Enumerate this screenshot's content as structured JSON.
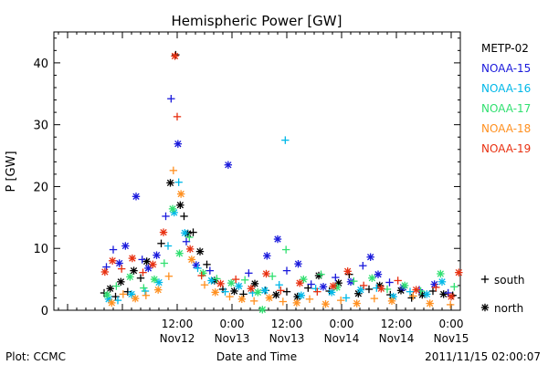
{
  "chart_data": {
    "type": "scatter",
    "title": "Hemispheric Power [GW]",
    "xlabel": "Date and Time",
    "ylabel": "P [GW]",
    "xlim": [
      "2011-11-11 09:00",
      "2011-11-15 02:00"
    ],
    "ylim": [
      0,
      45
    ],
    "y_ticks": [
      0,
      10,
      20,
      30,
      40
    ],
    "x_ticks": [
      {
        "at": "2011-11-11 12:00",
        "line1": "",
        "line2": ""
      },
      {
        "at": "2011-11-12 00:00",
        "line1": "",
        "line2": ""
      },
      {
        "at": "2011-11-12 12:00",
        "line1": "12:00",
        "line2": "Nov12"
      },
      {
        "at": "2011-11-13 00:00",
        "line1": "0:00",
        "line2": "Nov13"
      },
      {
        "at": "2011-11-13 12:00",
        "line1": "12:00",
        "line2": "Nov13"
      },
      {
        "at": "2011-11-14 00:00",
        "line1": "0:00",
        "line2": "Nov14"
      },
      {
        "at": "2011-11-14 12:00",
        "line1": "12:00",
        "line2": "Nov14"
      },
      {
        "at": "2011-11-15 00:00",
        "line1": "0:00",
        "line2": "Nov15"
      }
    ],
    "legend_placement": "right",
    "marker_legend": [
      {
        "marker": "+",
        "label": "south"
      },
      {
        "marker": "*",
        "label": "north"
      }
    ],
    "series": [
      {
        "name": "METP-02",
        "color": "#000000",
        "points": [
          [
            "2011-11-11 20:00",
            2.8,
            "+"
          ],
          [
            "2011-11-11 21:20",
            3.5,
            "*"
          ],
          [
            "2011-11-11 22:30",
            2.2,
            "+"
          ],
          [
            "2011-11-11 23:40",
            4.6,
            "*"
          ],
          [
            "2011-11-12 01:10",
            3.0,
            "+"
          ],
          [
            "2011-11-12 02:30",
            6.4,
            "*"
          ],
          [
            "2011-11-12 04:00",
            5.2,
            "+"
          ],
          [
            "2011-11-12 05:20",
            7.9,
            "*"
          ],
          [
            "2011-11-12 08:30",
            10.8,
            "+"
          ],
          [
            "2011-11-12 10:30",
            20.6,
            "*"
          ],
          [
            "2011-11-12 11:40",
            41.3,
            "+"
          ],
          [
            "2011-11-12 12:40",
            17.0,
            "*"
          ],
          [
            "2011-11-12 13:30",
            15.2,
            "+"
          ],
          [
            "2011-11-12 14:20",
            12.4,
            "*"
          ],
          [
            "2011-11-12 15:30",
            12.6,
            "+"
          ],
          [
            "2011-11-12 17:00",
            9.5,
            "*"
          ],
          [
            "2011-11-12 18:30",
            7.4,
            "+"
          ],
          [
            "2011-11-12 20:10",
            4.8,
            "*"
          ],
          [
            "2011-11-12 22:00",
            3.4,
            "+"
          ],
          [
            "2011-11-13 00:30",
            3.1,
            "*"
          ],
          [
            "2011-11-13 02:30",
            2.6,
            "+"
          ],
          [
            "2011-11-13 05:00",
            4.3,
            "*"
          ],
          [
            "2011-11-13 07:20",
            3.2,
            "+"
          ],
          [
            "2011-11-13 09:40",
            2.5,
            "*"
          ],
          [
            "2011-11-13 12:00",
            3.0,
            "+"
          ],
          [
            "2011-11-13 14:20",
            2.2,
            "*"
          ],
          [
            "2011-11-13 16:40",
            3.6,
            "+"
          ],
          [
            "2011-11-13 19:00",
            5.6,
            "*"
          ],
          [
            "2011-11-13 21:20",
            3.1,
            "+"
          ],
          [
            "2011-11-13 23:20",
            4.4,
            "*"
          ],
          [
            "2011-11-14 01:40",
            5.8,
            "+"
          ],
          [
            "2011-11-14 03:40",
            2.7,
            "*"
          ],
          [
            "2011-11-14 06:00",
            3.4,
            "+"
          ],
          [
            "2011-11-14 08:20",
            4.0,
            "*"
          ],
          [
            "2011-11-14 10:40",
            2.5,
            "+"
          ],
          [
            "2011-11-14 13:00",
            3.2,
            "*"
          ],
          [
            "2011-11-14 15:20",
            2.0,
            "+"
          ],
          [
            "2011-11-14 17:40",
            2.5,
            "*"
          ],
          [
            "2011-11-14 20:00",
            3.1,
            "+"
          ],
          [
            "2011-11-14 22:20",
            2.6,
            "*"
          ],
          [
            "2011-11-15 00:20",
            2.4,
            "+"
          ]
        ]
      },
      {
        "name": "NOAA-15",
        "color": "#1a1adc",
        "points": [
          [
            "2011-11-11 20:30",
            7.0,
            "+"
          ],
          [
            "2011-11-11 22:00",
            9.8,
            "+"
          ],
          [
            "2011-11-11 23:20",
            7.6,
            "*"
          ],
          [
            "2011-11-12 00:40",
            10.4,
            "*"
          ],
          [
            "2011-11-12 03:00",
            18.4,
            "*"
          ],
          [
            "2011-11-12 04:20",
            8.2,
            "+"
          ],
          [
            "2011-11-12 05:40",
            6.8,
            "*"
          ],
          [
            "2011-11-12 07:30",
            8.9,
            "*"
          ],
          [
            "2011-11-12 09:30",
            15.2,
            "+"
          ],
          [
            "2011-11-12 10:40",
            34.2,
            "+"
          ],
          [
            "2011-11-12 12:10",
            26.9,
            "*"
          ],
          [
            "2011-11-12 14:00",
            11.1,
            "+"
          ],
          [
            "2011-11-12 16:10",
            7.3,
            "*"
          ],
          [
            "2011-11-12 19:10",
            6.4,
            "+"
          ],
          [
            "2011-11-12 23:10",
            23.5,
            "*"
          ],
          [
            "2011-11-13 03:40",
            6.0,
            "+"
          ],
          [
            "2011-11-13 07:40",
            8.8,
            "*"
          ],
          [
            "2011-11-13 10:00",
            11.5,
            "*"
          ],
          [
            "2011-11-13 12:00",
            6.4,
            "+"
          ],
          [
            "2011-11-13 14:30",
            7.5,
            "*"
          ],
          [
            "2011-11-13 17:20",
            4.2,
            "+"
          ],
          [
            "2011-11-13 20:00",
            3.8,
            "*"
          ],
          [
            "2011-11-13 22:40",
            5.3,
            "+"
          ],
          [
            "2011-11-14 02:00",
            4.6,
            "*"
          ],
          [
            "2011-11-14 04:40",
            7.2,
            "+"
          ],
          [
            "2011-11-14 06:20",
            8.6,
            "*"
          ],
          [
            "2011-11-14 08:00",
            5.8,
            "*"
          ],
          [
            "2011-11-14 10:30",
            4.5,
            "+"
          ],
          [
            "2011-11-14 13:30",
            3.7,
            "*"
          ],
          [
            "2011-11-14 17:00",
            3.3,
            "+"
          ],
          [
            "2011-11-14 20:20",
            4.2,
            "*"
          ],
          [
            "2011-11-14 23:20",
            2.8,
            "+"
          ]
        ]
      },
      {
        "name": "NOAA-16",
        "color": "#00b8e8",
        "points": [
          [
            "2011-11-11 21:00",
            1.8,
            "*"
          ],
          [
            "2011-11-11 23:00",
            1.6,
            "+"
          ],
          [
            "2011-11-12 02:00",
            2.6,
            "*"
          ],
          [
            "2011-11-12 05:00",
            3.1,
            "+"
          ],
          [
            "2011-11-12 08:00",
            4.5,
            "*"
          ],
          [
            "2011-11-12 10:00",
            10.4,
            "+"
          ],
          [
            "2011-11-12 11:20",
            15.8,
            "*"
          ],
          [
            "2011-11-12 12:20",
            20.7,
            "+"
          ],
          [
            "2011-11-12 13:40",
            12.5,
            "*"
          ],
          [
            "2011-11-12 16:30",
            6.8,
            "+"
          ],
          [
            "2011-11-12 19:30",
            4.8,
            "*"
          ],
          [
            "2011-11-12 22:30",
            3.0,
            "+"
          ],
          [
            "2011-11-13 01:30",
            3.9,
            "*"
          ],
          [
            "2011-11-13 04:30",
            2.8,
            "+"
          ],
          [
            "2011-11-13 07:10",
            3.2,
            "*"
          ],
          [
            "2011-11-13 10:20",
            4.1,
            "+"
          ],
          [
            "2011-11-13 11:40",
            27.5,
            "+"
          ],
          [
            "2011-11-13 15:10",
            2.4,
            "*"
          ],
          [
            "2011-11-13 18:20",
            3.5,
            "+"
          ],
          [
            "2011-11-13 21:50",
            2.9,
            "*"
          ],
          [
            "2011-11-14 01:00",
            2.0,
            "+"
          ],
          [
            "2011-11-14 04:10",
            3.3,
            "*"
          ],
          [
            "2011-11-14 07:40",
            3.6,
            "+"
          ],
          [
            "2011-11-14 11:20",
            2.2,
            "*"
          ],
          [
            "2011-11-14 15:00",
            3.0,
            "+"
          ],
          [
            "2011-11-14 18:40",
            2.6,
            "*"
          ],
          [
            "2011-11-14 22:00",
            4.6,
            "*"
          ]
        ]
      },
      {
        "name": "NOAA-17",
        "color": "#30e070",
        "points": [
          [
            "2011-11-11 20:40",
            2.5,
            "*"
          ],
          [
            "2011-11-11 22:40",
            3.9,
            "+"
          ],
          [
            "2011-11-12 01:40",
            5.4,
            "*"
          ],
          [
            "2011-11-12 04:40",
            3.6,
            "+"
          ],
          [
            "2011-11-12 07:00",
            5.0,
            "*"
          ],
          [
            "2011-11-12 09:10",
            7.6,
            "+"
          ],
          [
            "2011-11-12 11:00",
            16.4,
            "*"
          ],
          [
            "2011-11-12 12:30",
            9.2,
            "*"
          ],
          [
            "2011-11-12 14:40",
            11.8,
            "+"
          ],
          [
            "2011-11-12 17:40",
            6.0,
            "*"
          ],
          [
            "2011-11-12 20:40",
            5.1,
            "+"
          ],
          [
            "2011-11-12 23:50",
            4.4,
            "*"
          ],
          [
            "2011-11-13 02:50",
            4.9,
            "+"
          ],
          [
            "2011-11-13 05:40",
            2.9,
            "*"
          ],
          [
            "2011-11-13 06:40",
            0.1,
            "*"
          ],
          [
            "2011-11-13 08:50",
            5.5,
            "+"
          ],
          [
            "2011-11-13 11:50",
            9.8,
            "+"
          ],
          [
            "2011-11-13 15:40",
            5.0,
            "*"
          ],
          [
            "2011-11-13 19:30",
            5.8,
            "+"
          ],
          [
            "2011-11-13 23:00",
            3.7,
            "*"
          ],
          [
            "2011-11-14 02:40",
            4.7,
            "+"
          ],
          [
            "2011-11-14 06:40",
            5.2,
            "*"
          ],
          [
            "2011-11-14 10:00",
            3.4,
            "+"
          ],
          [
            "2011-11-14 13:50",
            4.0,
            "*"
          ],
          [
            "2011-11-14 17:20",
            3.1,
            "+"
          ],
          [
            "2011-11-14 21:40",
            5.9,
            "*"
          ],
          [
            "2011-11-15 00:40",
            3.8,
            "+"
          ]
        ]
      },
      {
        "name": "NOAA-18",
        "color": "#ff9020",
        "points": [
          [
            "2011-11-11 21:40",
            1.2,
            "*"
          ],
          [
            "2011-11-12 00:10",
            2.6,
            "+"
          ],
          [
            "2011-11-12 02:50",
            1.9,
            "*"
          ],
          [
            "2011-11-12 05:10",
            2.4,
            "+"
          ],
          [
            "2011-11-12 07:50",
            3.3,
            "*"
          ],
          [
            "2011-11-12 10:10",
            5.5,
            "+"
          ],
          [
            "2011-11-12 11:10",
            22.6,
            "+"
          ],
          [
            "2011-11-12 12:50",
            18.8,
            "*"
          ],
          [
            "2011-11-12 15:10",
            8.2,
            "*"
          ],
          [
            "2011-11-12 18:00",
            4.1,
            "+"
          ],
          [
            "2011-11-12 20:20",
            2.9,
            "*"
          ],
          [
            "2011-11-12 23:30",
            2.2,
            "+"
          ],
          [
            "2011-11-13 02:10",
            1.8,
            "*"
          ],
          [
            "2011-11-13 04:50",
            1.5,
            "+"
          ],
          [
            "2011-11-13 08:10",
            2.0,
            "*"
          ],
          [
            "2011-11-13 11:10",
            1.4,
            "+"
          ],
          [
            "2011-11-13 14:10",
            1.2,
            "*"
          ],
          [
            "2011-11-13 17:00",
            1.8,
            "+"
          ],
          [
            "2011-11-13 20:30",
            1.0,
            "*"
          ],
          [
            "2011-11-13 23:50",
            1.6,
            "+"
          ],
          [
            "2011-11-14 03:20",
            1.1,
            "*"
          ],
          [
            "2011-11-14 07:10",
            1.9,
            "+"
          ],
          [
            "2011-11-14 11:00",
            1.5,
            "*"
          ],
          [
            "2011-11-14 15:40",
            2.3,
            "+"
          ],
          [
            "2011-11-14 19:20",
            1.1,
            "*"
          ],
          [
            "2011-11-14 23:50",
            0.9,
            "+"
          ]
        ]
      },
      {
        "name": "NOAA-19",
        "color": "#e83010",
        "points": [
          [
            "2011-11-11 20:10",
            6.2,
            "*"
          ],
          [
            "2011-11-11 21:50",
            8.0,
            "*"
          ],
          [
            "2011-11-11 23:50",
            6.7,
            "+"
          ],
          [
            "2011-11-12 02:10",
            8.4,
            "*"
          ],
          [
            "2011-11-12 04:30",
            6.1,
            "+"
          ],
          [
            "2011-11-12 06:40",
            7.4,
            "*"
          ],
          [
            "2011-11-12 09:00",
            12.6,
            "*"
          ],
          [
            "2011-11-12 11:30",
            41.1,
            "*"
          ],
          [
            "2011-11-12 12:00",
            31.3,
            "+"
          ],
          [
            "2011-11-12 14:50",
            9.9,
            "*"
          ],
          [
            "2011-11-12 17:20",
            5.6,
            "+"
          ],
          [
            "2011-11-12 21:30",
            4.3,
            "*"
          ],
          [
            "2011-11-13 00:50",
            5.0,
            "+"
          ],
          [
            "2011-11-13 04:10",
            3.5,
            "*"
          ],
          [
            "2011-11-13 07:30",
            5.9,
            "*"
          ],
          [
            "2011-11-13 10:40",
            3.2,
            "+"
          ],
          [
            "2011-11-13 14:50",
            4.4,
            "*"
          ],
          [
            "2011-11-13 18:40",
            3.0,
            "+"
          ],
          [
            "2011-11-13 22:10",
            3.9,
            "*"
          ],
          [
            "2011-11-14 01:20",
            6.3,
            "*"
          ],
          [
            "2011-11-14 04:50",
            4.0,
            "+"
          ],
          [
            "2011-11-14 08:40",
            3.5,
            "*"
          ],
          [
            "2011-11-14 12:20",
            4.8,
            "+"
          ],
          [
            "2011-11-14 16:20",
            3.3,
            "*"
          ],
          [
            "2011-11-14 20:40",
            3.7,
            "+"
          ],
          [
            "2011-11-15 00:00",
            2.2,
            "*"
          ],
          [
            "2011-11-15 01:40",
            6.1,
            "*"
          ]
        ]
      }
    ]
  },
  "footer": {
    "left": "Plot: CCMC",
    "center": "Date and Time",
    "right": "2011/11/15 02:00:07"
  }
}
